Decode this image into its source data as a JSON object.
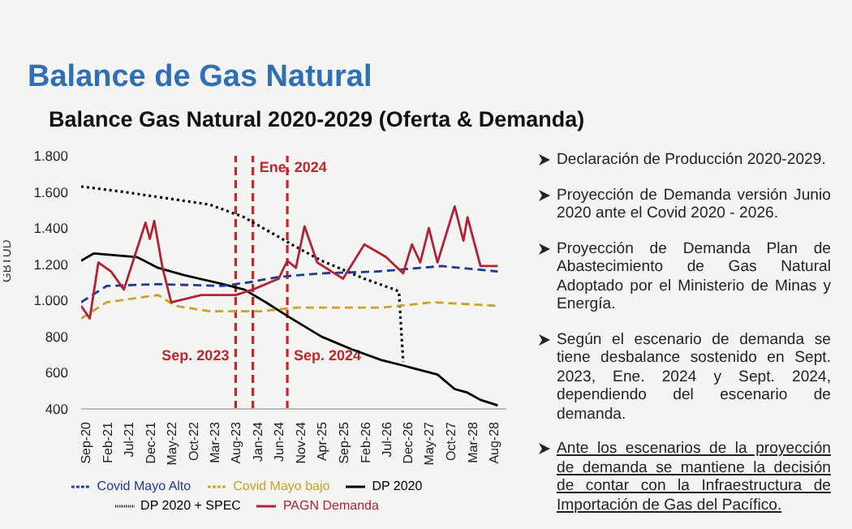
{
  "chart_data": {
    "type": "line",
    "title": "Balance de Gas Natural",
    "subtitle": "Balance Gas Natural 2020-2029 (Oferta & Demanda)",
    "ylabel": "GBTUD",
    "xlim": [
      "2020-09",
      "2028-12"
    ],
    "xticks": [
      {
        "value": "2020-09",
        "label": "Sep-20"
      },
      {
        "value": "2021-02",
        "label": "Feb-21"
      },
      {
        "value": "2021-07",
        "label": "Jul-21"
      },
      {
        "value": "2021-12",
        "label": "Dec-21"
      },
      {
        "value": "2022-05",
        "label": "May-22"
      },
      {
        "value": "2022-10",
        "label": "Oct-22"
      },
      {
        "value": "2023-03",
        "label": "Mar-23"
      },
      {
        "value": "2023-08",
        "label": "Aug-23"
      },
      {
        "value": "2024-01",
        "label": "Jan-24"
      },
      {
        "value": "2024-06",
        "label": "Jun-24"
      },
      {
        "value": "2024-11",
        "label": "Nov-24"
      },
      {
        "value": "2025-04",
        "label": "Apr-25"
      },
      {
        "value": "2025-09",
        "label": "Sep-25"
      },
      {
        "value": "2026-02",
        "label": "Feb-26"
      },
      {
        "value": "2026-07",
        "label": "Jul-26"
      },
      {
        "value": "2026-12",
        "label": "Dec-26"
      },
      {
        "value": "2027-05",
        "label": "May-27"
      },
      {
        "value": "2027-10",
        "label": "Oct-27"
      },
      {
        "value": "2028-03",
        "label": "Mar-28"
      },
      {
        "value": "2028-08",
        "label": "Aug-28"
      }
    ],
    "ylim": [
      400,
      1800
    ],
    "yticks": [
      {
        "value": 400,
        "label": "400"
      },
      {
        "value": 600,
        "label": "600"
      },
      {
        "value": 800,
        "label": "800"
      },
      {
        "value": 1000,
        "label": "1.000"
      },
      {
        "value": 1200,
        "label": "1.200"
      },
      {
        "value": 1400,
        "label": "1.400"
      },
      {
        "value": 1600,
        "label": "1.600"
      },
      {
        "value": 1800,
        "label": "1.800"
      }
    ],
    "grid": false,
    "legend": "bottom",
    "marker": "none",
    "series": [
      {
        "name": "DP 2020 + SPEC",
        "color": "#000000",
        "line_style": "dotted",
        "x": [
          "2020-09",
          "2021-07",
          "2023-03",
          "2023-11",
          "2024-10",
          "2025-05",
          "2026-03",
          "2026-10",
          "2026-11",
          "2026-12"
        ],
        "values": [
          1630,
          1600,
          1530,
          1460,
          1310,
          1220,
          1120,
          1060,
          1050,
          660
        ]
      },
      {
        "name": "DP 2020",
        "color": "#000000",
        "line_style": "solid",
        "x": [
          "2020-09",
          "2020-12",
          "2021-10",
          "2022-03",
          "2022-09",
          "2023-06",
          "2023-11",
          "2024-04",
          "2024-10",
          "2025-05",
          "2025-12",
          "2026-07",
          "2026-12",
          "2027-08",
          "2027-12",
          "2028-03",
          "2028-06",
          "2028-10"
        ],
        "values": [
          1220,
          1260,
          1240,
          1180,
          1140,
          1090,
          1060,
          990,
          900,
          800,
          730,
          670,
          640,
          590,
          510,
          490,
          450,
          420
        ]
      },
      {
        "name": "Covid Mayo bajo",
        "color": "#c9a227",
        "line_style": "dashed",
        "x": [
          "2020-09",
          "2021-03",
          "2022-03",
          "2022-07",
          "2023-03",
          "2024-03",
          "2024-11",
          "2026-07",
          "2027-07",
          "2028-10"
        ],
        "values": [
          900,
          990,
          1030,
          970,
          940,
          940,
          960,
          960,
          990,
          970
        ]
      },
      {
        "name": "Covid Mayo Alto",
        "color": "#1f3a93",
        "line_style": "dashed",
        "x": [
          "2020-09",
          "2021-03",
          "2022-03",
          "2023-06",
          "2023-12",
          "2024-07",
          "2025-05",
          "2026-06",
          "2027-09",
          "2028-10"
        ],
        "values": [
          990,
          1080,
          1090,
          1080,
          1100,
          1130,
          1150,
          1160,
          1190,
          1160
        ]
      },
      {
        "name": "PAGN Demanda",
        "color": "#b22234",
        "line_style": "solid",
        "x": [
          "2020-09",
          "2020-11",
          "2021-01",
          "2021-04",
          "2021-07",
          "2021-09",
          "2021-12",
          "2022-01",
          "2022-02",
          "2022-04",
          "2022-06",
          "2023-01",
          "2023-09",
          "2024-01",
          "2024-07",
          "2024-09",
          "2024-11",
          "2025-01",
          "2025-04",
          "2025-08",
          "2025-10",
          "2026-03",
          "2026-08",
          "2026-12",
          "2027-02",
          "2027-04",
          "2027-06",
          "2027-08",
          "2027-12",
          "2028-02",
          "2028-03",
          "2028-06",
          "2028-10"
        ],
        "values": [
          970,
          900,
          1210,
          1160,
          1060,
          1210,
          1430,
          1340,
          1440,
          1180,
          990,
          1030,
          1030,
          1060,
          1120,
          1220,
          1180,
          1410,
          1210,
          1150,
          1120,
          1310,
          1240,
          1150,
          1310,
          1210,
          1400,
          1210,
          1520,
          1330,
          1460,
          1190,
          1190
        ]
      }
    ],
    "ref_lines": [
      {
        "axis": "x",
        "value": "2023-09",
        "label": "Sep. 2023",
        "color": "#c0282d",
        "line_style": "dashed"
      },
      {
        "axis": "x",
        "value": "2024-01",
        "label": "Ene. 2024",
        "color": "#c0282d",
        "line_style": "dashed"
      },
      {
        "axis": "x",
        "value": "2024-09",
        "label": "Sep. 2024",
        "color": "#c0282d",
        "line_style": "dashed"
      }
    ],
    "annotations": [
      "Declaración de Producción 2020-2029.",
      "Proyección de Demanda versión  Junio 2020 ante el Covid 2020 - 2026.",
      "Proyección de Demanda Plan de Abastecimiento de Gas Natural Adoptado por el Ministerio de Minas y Energía.",
      "Según el escenario de demanda se tiene desbalance sostenido en Sept. 2023, Ene. 2024 y Sept. 2024, dependiendo del escenario de demanda.",
      "Ante los escenarios de la proyección de demanda se mantiene la decisión de contar con la Infraestructura de Importación de Gas del Pacífico."
    ]
  }
}
